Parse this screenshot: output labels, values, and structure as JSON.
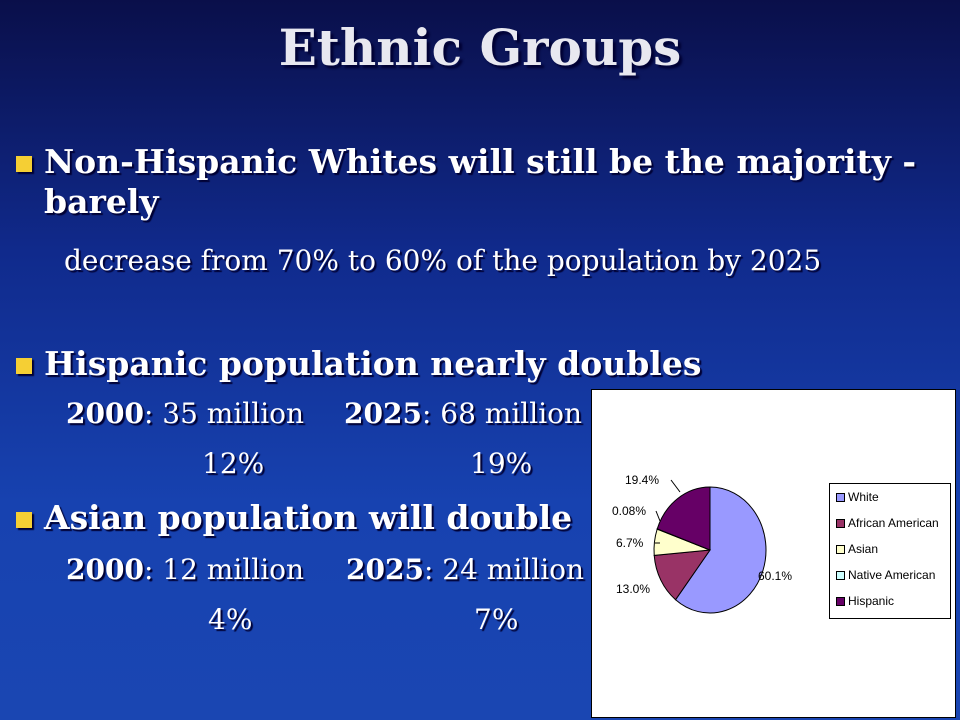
{
  "slide": {
    "title": "Ethnic Groups",
    "bullets": [
      {
        "text_line1": "Non-Hispanic Whites will still be the majority -",
        "text_line2": "barely"
      },
      {
        "text": "Hispanic population nearly doubles"
      },
      {
        "text": "Asian population will double"
      }
    ],
    "whites_detail": "decrease from 70% to 60% of the population by 2025",
    "hispanic": {
      "y1_label": "2000",
      "y1_value": ": 35 million",
      "y2_label": "2025",
      "y2_value": ": 68 million",
      "y1_pct": "12%",
      "y2_pct": "19%"
    },
    "asian": {
      "y1_label": "2000",
      "y1_value": ": 12 million",
      "y2_label": "2025",
      "y2_value": ": 24 million",
      "y1_pct": "4%",
      "y2_pct": "7%"
    },
    "bullet_color": "#f5cf34"
  },
  "chart_data": {
    "type": "pie",
    "slices": [
      {
        "name": "White",
        "value": 60.1,
        "label": "60.1%",
        "color": "#9999ff"
      },
      {
        "name": "African American",
        "value": 13.0,
        "label": "13.0%",
        "color": "#993366"
      },
      {
        "name": "Asian",
        "value": 6.7,
        "label": "6.7%",
        "color": "#ffffcc"
      },
      {
        "name": "Native American",
        "value": 0.08,
        "label": "0.08%",
        "color": "#ccffff"
      },
      {
        "name": "Hispanic",
        "value": 19.4,
        "label": "19.4%",
        "color": "#660066"
      }
    ],
    "legend_position": "right"
  }
}
